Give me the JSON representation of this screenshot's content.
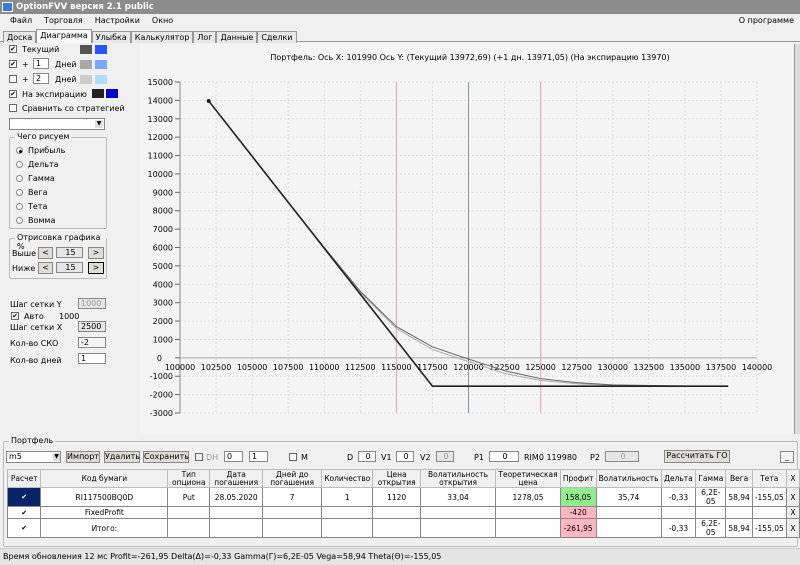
{
  "window": {
    "title": "OptionFVV версия 2.1 public"
  },
  "menu": [
    "Файл",
    "Торговля",
    "Настройки",
    "Окно"
  ],
  "menu_right": "О программе",
  "tabs": [
    "Доска",
    "Диаграмма",
    "Улыбка",
    "Калькулятор",
    "Лог",
    "Данные",
    "Сделки"
  ],
  "active_tab": "Диаграмма",
  "left": {
    "current": {
      "label": "Текущий",
      "checked": true,
      "colors": [
        "#555555",
        "#2255ff"
      ]
    },
    "plus1": {
      "label": "+",
      "value": "1",
      "days": "Дней",
      "checked": true,
      "colors": [
        "#a8a8a8",
        "#77aaff"
      ]
    },
    "plus2": {
      "label": "+",
      "value": "2",
      "days": "Дней",
      "checked": false,
      "colors": [
        "#cccccc",
        "#aaddff"
      ]
    },
    "expiration": {
      "label": "На экспирацию",
      "checked": true,
      "colors": [
        "#222222",
        "#0000cc"
      ]
    },
    "compare": {
      "label": "Сравнить со стратегией",
      "checked": false
    },
    "draw_group": {
      "title": "Чего рисуем",
      "options": [
        "Прибыль",
        "Дельта",
        "Гамма",
        "Вега",
        "Тета",
        "Вомма"
      ],
      "selected": "Прибыль"
    },
    "range_group": {
      "title": "Отрисовка графика %",
      "above_label": "Выше",
      "above": "15",
      "below_label": "Ниже",
      "below": "15",
      "prev": "<",
      "next": ">"
    },
    "grid_y_label": "Шаг сетки Y",
    "grid_y": "1000",
    "auto_label": "Авто",
    "auto_checked": true,
    "auto_value": "1000",
    "grid_x_label": "Шаг сетки X",
    "grid_x": "2500",
    "sko_label": "Кол-во СКО",
    "sko": "-2",
    "days_label": "Кол-во дней",
    "days": "1"
  },
  "chart_data": {
    "type": "line",
    "title": "Портфель: Ось X: 101990 Ось Y:  (Текущий 13972,69)  (+1 дн. 13971,05)  (На экспирацию 13970)",
    "xlim": [
      100000,
      140000
    ],
    "ylim": [
      -3000,
      15000
    ],
    "xticks": [
      "100000",
      "102500",
      "105000",
      "107500",
      "110000",
      "112500",
      "115000",
      "117500",
      "120000",
      "122500",
      "125000",
      "127500",
      "130000",
      "132500",
      "135000",
      "137500",
      "140000"
    ],
    "yticks": [
      "15000",
      "14000",
      "13000",
      "12000",
      "11000",
      "10000",
      "9000",
      "8000",
      "7000",
      "6000",
      "5000",
      "4000",
      "3000",
      "2000",
      "1000",
      "0",
      "-1000",
      "-2000",
      "-3000"
    ],
    "grid": true,
    "vlines": [
      {
        "x": 115000,
        "color": "#f0a0a8"
      },
      {
        "x": 125000,
        "color": "#f0a0a8"
      },
      {
        "x": 120000,
        "color": "#8896a4"
      }
    ],
    "marker": {
      "x": 101990,
      "y": 13970
    },
    "series": [
      {
        "id": "expiration",
        "color": "#222222",
        "x": [
          101990,
          117500,
          138000
        ],
        "y": [
          13970,
          -1540,
          -1540
        ]
      },
      {
        "id": "current",
        "color": "#666666",
        "x": [
          101990,
          105000,
          107500,
          110000,
          112500,
          115000,
          117500,
          120000,
          122500,
          125000,
          127500,
          130000,
          135000,
          138000
        ],
        "y": [
          13972,
          10960,
          8470,
          6000,
          3620,
          1700,
          600,
          -70,
          -700,
          -1130,
          -1350,
          -1470,
          -1535,
          -1540
        ]
      },
      {
        "id": "plus1",
        "color": "#aaaaaa",
        "x": [
          101990,
          105000,
          107500,
          110000,
          112500,
          115000,
          117500,
          120000,
          122500,
          125000,
          127500,
          130000,
          135000,
          138000
        ],
        "y": [
          13971,
          10955,
          8460,
          5980,
          3560,
          1600,
          450,
          -200,
          -850,
          -1230,
          -1410,
          -1500,
          -1538,
          -1540
        ]
      }
    ]
  },
  "portfolio": {
    "title": "Портфель",
    "select": "m5",
    "import": "Импорт",
    "delete": "Удалить",
    "save": "Сохранить",
    "dh_label": "DH",
    "dh1": "0",
    "dh2": "1",
    "m_label": "M",
    "d_label": "D",
    "d": "0",
    "v1_label": "V1",
    "v1": "0",
    "v2_label": "V2",
    "v2": "0",
    "p1_label": "P1",
    "p1": "0",
    "rim": "RIM0 119980",
    "p2_label": "P2",
    "p2": "0",
    "calc_go": "Рассчитать ГО",
    "minimize": "_",
    "columns": [
      "Расчет",
      "Код бумаги",
      "Тип опциона",
      "Дата погашения",
      "Дней до погашения",
      "Количество",
      "Цена открытия",
      "Волатильность открытия",
      "Теоретическая цена",
      "Профит",
      "Волатильность",
      "Дельта",
      "Гамма",
      "Вега",
      "Тета",
      "X"
    ],
    "rows": [
      [
        "✔",
        "RI117500BQ0D",
        "Put",
        "28.05.2020",
        "7",
        "1",
        "1120",
        "33,04",
        "1278,05",
        "158,05",
        "35,74",
        "-0,33",
        "6,2E-05",
        "58,94",
        "-155,05",
        "X"
      ],
      [
        "✔",
        "FixedProfit",
        "",
        "",
        "",
        "",
        "",
        "",
        "",
        "-420",
        "",
        "",
        "",
        "",
        "",
        "X"
      ],
      [
        "✔",
        "Итого:",
        "",
        "",
        "",
        "",
        "",
        "",
        "",
        "-261,95",
        "",
        "-0,33",
        "6,2E-05",
        "58,94",
        "-155,05",
        "X"
      ]
    ],
    "profit_colors": {
      "positive": "#90ee90",
      "negative": "#ffb6c1"
    }
  },
  "status": "Время обновления 12 мс  Profit=-261,95 Delta(Δ)=-0,33 Gamma(Γ)=6,2E-05 Vega=58,94 Theta(Θ)=-155,05"
}
